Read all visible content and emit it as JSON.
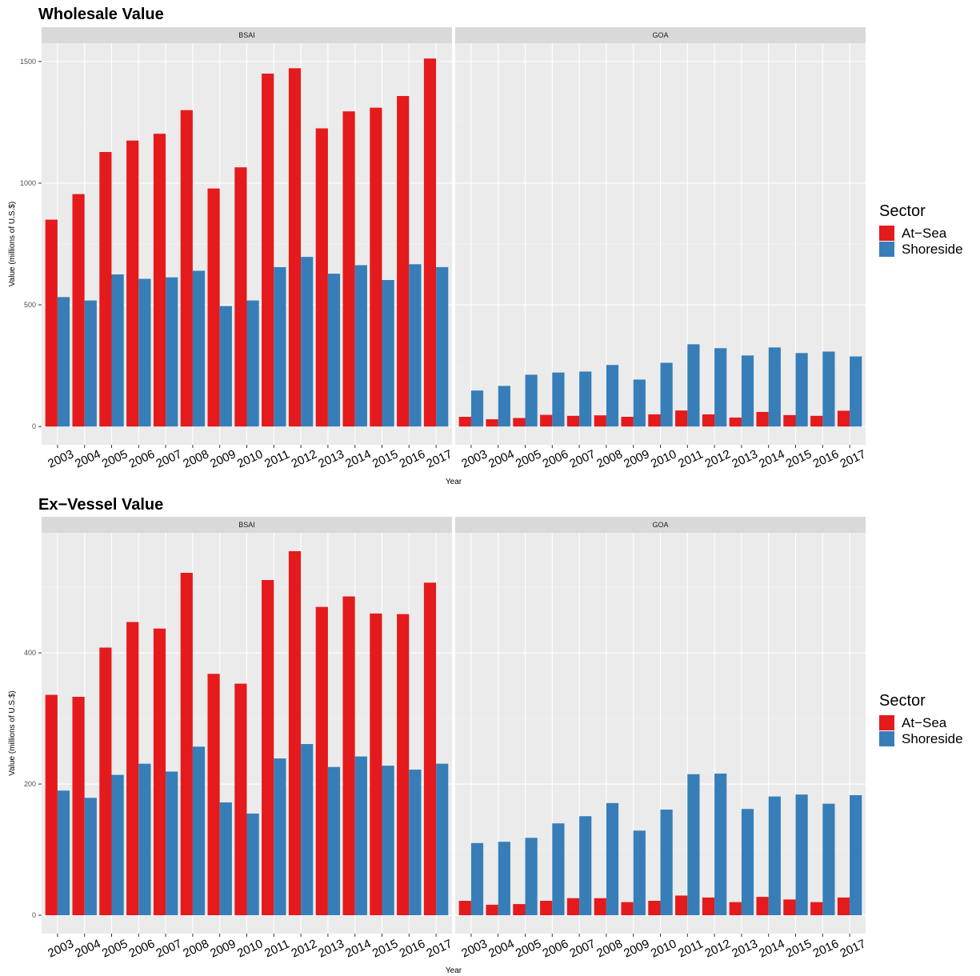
{
  "colors": {
    "At-Sea": "#e41a1c",
    "Shoreside": "#377eb8"
  },
  "legend": {
    "title": "Sector",
    "items": [
      "At−Sea",
      "Shoreside"
    ]
  },
  "chart_data": [
    {
      "type": "bar",
      "title": "Wholesale Value",
      "xlabel": "Year",
      "ylabel": "Value (millions of U.S.$)",
      "ylim": [
        -75,
        1575
      ],
      "yticks": [
        0,
        500,
        1000,
        1500
      ],
      "legend_position": "right",
      "grid": true,
      "categories": [
        "2003",
        "2004",
        "2005",
        "2006",
        "2007",
        "2008",
        "2009",
        "2010",
        "2011",
        "2012",
        "2013",
        "2014",
        "2015",
        "2016",
        "2017"
      ],
      "panels": [
        {
          "name": "BSAI",
          "series": [
            {
              "name": "At−Sea",
              "values": [
                850,
                955,
                1128,
                1175,
                1203,
                1300,
                978,
                1065,
                1450,
                1472,
                1225,
                1295,
                1310,
                1358,
                1512
              ]
            },
            {
              "name": "Shoreside",
              "values": [
                532,
                518,
                625,
                607,
                613,
                640,
                495,
                518,
                655,
                697,
                628,
                663,
                602,
                667,
                655
              ]
            }
          ]
        },
        {
          "name": "GOA",
          "series": [
            {
              "name": "At−Sea",
              "values": [
                40,
                30,
                35,
                48,
                44,
                46,
                40,
                50,
                66,
                50,
                37,
                60,
                47,
                44,
                65
              ]
            },
            {
              "name": "Shoreside",
              "values": [
                148,
                167,
                213,
                222,
                226,
                253,
                193,
                262,
                338,
                322,
                292,
                325,
                302,
                308,
                288
              ]
            }
          ]
        }
      ]
    },
    {
      "type": "bar",
      "title": "Ex−Vessel Value",
      "xlabel": "Year",
      "ylabel": "Value (millions of U.S.$)",
      "ylim": [
        -28,
        583
      ],
      "yticks": [
        0,
        200,
        400
      ],
      "legend_position": "right",
      "grid": true,
      "categories": [
        "2003",
        "2004",
        "2005",
        "2006",
        "2007",
        "2008",
        "2009",
        "2010",
        "2011",
        "2012",
        "2013",
        "2014",
        "2015",
        "2016",
        "2017"
      ],
      "panels": [
        {
          "name": "BSAI",
          "series": [
            {
              "name": "At−Sea",
              "values": [
                336,
                333,
                408,
                447,
                437,
                522,
                368,
                353,
                511,
                555,
                470,
                486,
                460,
                459,
                507
              ]
            },
            {
              "name": "Shoreside",
              "values": [
                190,
                179,
                214,
                231,
                219,
                257,
                172,
                155,
                239,
                261,
                226,
                242,
                228,
                222,
                231
              ]
            }
          ]
        },
        {
          "name": "GOA",
          "series": [
            {
              "name": "At−Sea",
              "values": [
                22,
                16,
                17,
                22,
                26,
                26,
                20,
                22,
                30,
                27,
                20,
                28,
                24,
                20,
                27
              ]
            },
            {
              "name": "Shoreside",
              "values": [
                110,
                112,
                118,
                140,
                151,
                171,
                129,
                161,
                215,
                216,
                162,
                181,
                184,
                170,
                183
              ]
            }
          ]
        }
      ]
    }
  ]
}
